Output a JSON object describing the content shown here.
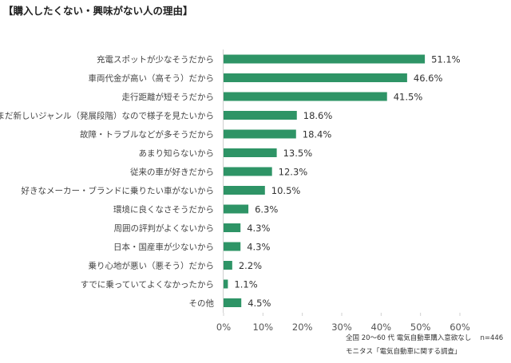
{
  "chart_data": {
    "type": "bar",
    "orientation": "horizontal",
    "title": "【購入したくない・興味がない人の理由】",
    "categories": [
      "充電スポットが少なそうだから",
      "車両代金が高い（高そう）だから",
      "走行距離が短そうだから",
      "まだ新しいジャンル（発展段階）なので様子を見たいから",
      "故障・トラブルなどが多そうだから",
      "あまり知らないから",
      "従来の車が好きだから",
      "好きなメーカー・ブランドに乗りたい車がないから",
      "環境に良くなさそうだから",
      "周囲の評判がよくないから",
      "日本・国産車が少ないから",
      "乗り心地が悪い（悪そう）だから",
      "すでに乗っていてよくなかったから",
      "その他"
    ],
    "values": [
      51.1,
      46.6,
      41.5,
      18.6,
      18.4,
      13.5,
      12.3,
      10.5,
      6.3,
      4.3,
      4.3,
      2.2,
      1.1,
      4.5
    ],
    "value_labels": [
      "51.1%",
      "46.6%",
      "41.5%",
      "18.6%",
      "18.4%",
      "13.5%",
      "12.3%",
      "10.5%",
      "6.3%",
      "4.3%",
      "4.3%",
      "2.2%",
      "1.1%",
      "4.5%"
    ],
    "xlim": [
      0,
      60
    ],
    "xticks": [
      "0%",
      "10%",
      "20%",
      "30%",
      "40%",
      "50%",
      "60%"
    ],
    "grid": false,
    "bar_color": "#2e9466",
    "notes": [
      "全国 20～60 代 電気自動車購入意欲なし　 n=446",
      "モニタス「電気自動車に関する調査」"
    ]
  }
}
